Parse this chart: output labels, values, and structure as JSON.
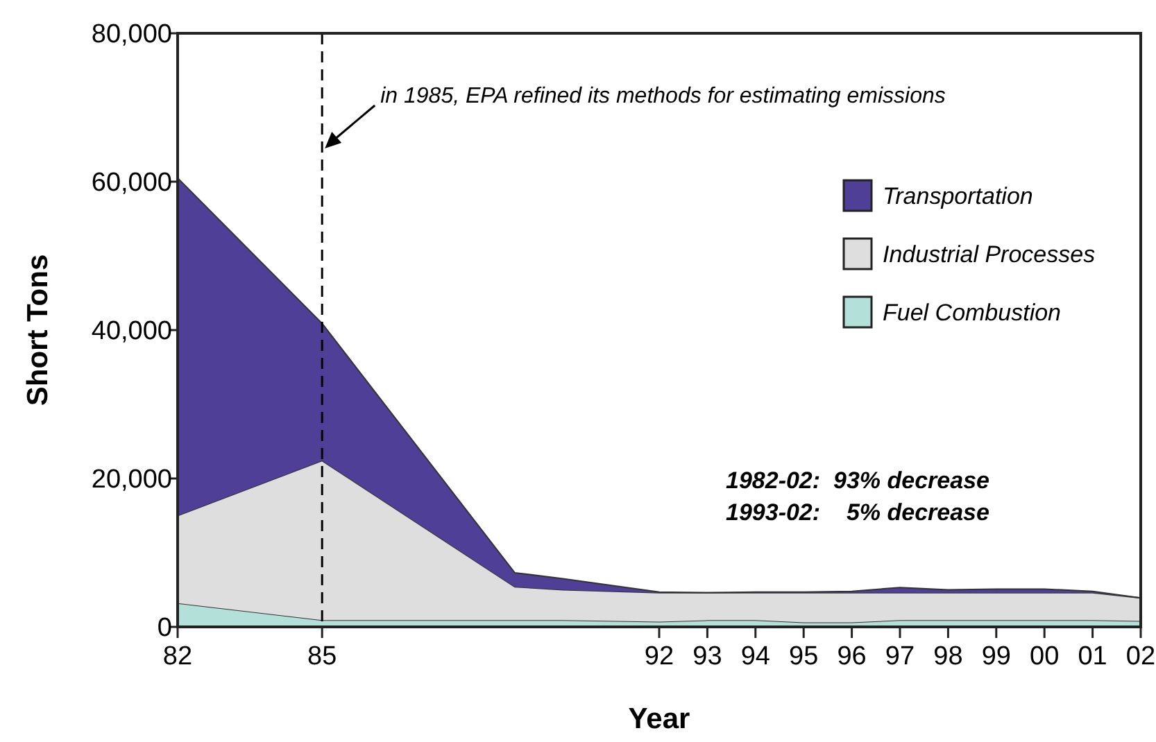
{
  "chart_data": {
    "type": "area",
    "stacked": true,
    "xlabel": "Year",
    "ylabel": "Short Tons",
    "x": [
      1982,
      1985,
      1989,
      1990,
      1992,
      1993,
      1994,
      1995,
      1996,
      1997,
      1998,
      1999,
      2000,
      2001,
      2002
    ],
    "series": [
      {
        "name": "Fuel Combustion",
        "color": "#b3e0d8",
        "values": [
          3200,
          900,
          900,
          900,
          700,
          900,
          900,
          600,
          600,
          900,
          900,
          900,
          900,
          900,
          800
        ]
      },
      {
        "name": "Industrial Processes",
        "color": "#dedede",
        "values": [
          11800,
          21500,
          4500,
          4100,
          3900,
          3700,
          3700,
          4000,
          4000,
          3700,
          3700,
          3700,
          3700,
          3700,
          3100
        ]
      },
      {
        "name": "Transportation",
        "color": "#4f3f97",
        "values": [
          45500,
          18500,
          1900,
          1500,
          100,
          0,
          100,
          100,
          200,
          700,
          400,
          500,
          500,
          200,
          0
        ]
      }
    ],
    "xlim": [
      1982,
      2002
    ],
    "xticks": [
      {
        "value": 1982,
        "label": "82"
      },
      {
        "value": 1985,
        "label": "85"
      },
      {
        "value": 1992,
        "label": "92"
      },
      {
        "value": 1993,
        "label": "93"
      },
      {
        "value": 1994,
        "label": "94"
      },
      {
        "value": 1995,
        "label": "95"
      },
      {
        "value": 1996,
        "label": "96"
      },
      {
        "value": 1997,
        "label": "97"
      },
      {
        "value": 1998,
        "label": "98"
      },
      {
        "value": 1999,
        "label": "99"
      },
      {
        "value": 2000,
        "label": "00"
      },
      {
        "value": 2001,
        "label": "01"
      },
      {
        "value": 2002,
        "label": "02"
      }
    ],
    "ylim": [
      0,
      80000
    ],
    "yticks": [
      {
        "value": 0,
        "label": "0"
      },
      {
        "value": 20000,
        "label": "20,000"
      },
      {
        "value": 40000,
        "label": "40,000"
      },
      {
        "value": 60000,
        "label": "60,000"
      },
      {
        "value": 80000,
        "label": "80,000"
      }
    ],
    "ref_lines": [
      {
        "axis": "x",
        "value": 1985,
        "line_style": "dashed",
        "color": "#000000"
      }
    ],
    "annotations": [
      {
        "text": "in 1985, EPA refined its methods for estimating emissions",
        "x": 1985,
        "y": 64300
      },
      "1982-02:  93% decrease",
      "1993-02:    5% decrease"
    ],
    "legend": "top right",
    "grid": false
  }
}
